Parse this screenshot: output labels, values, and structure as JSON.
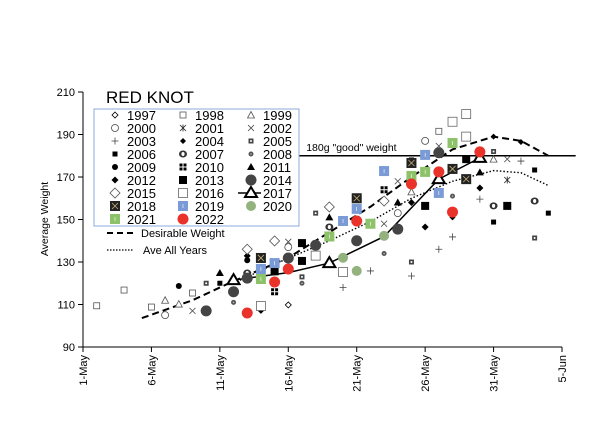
{
  "chart_data": {
    "type": "scatter",
    "title": "RED KNOT",
    "xlabel": "",
    "ylabel": "Average Weight",
    "x_units": "days after 1-May",
    "xlim": [
      0,
      35
    ],
    "ylim": [
      90,
      210
    ],
    "yticks": [
      90,
      110,
      130,
      150,
      170,
      190,
      210
    ],
    "xticks": [
      {
        "value": 0,
        "label": "1-May"
      },
      {
        "value": 5,
        "label": "6-May"
      },
      {
        "value": 10,
        "label": "11-May"
      },
      {
        "value": 15,
        "label": "16-May"
      },
      {
        "value": 20,
        "label": "21-May"
      },
      {
        "value": 25,
        "label": "26-May"
      },
      {
        "value": 30,
        "label": "31-May"
      },
      {
        "value": 35,
        "label": "5-Jun"
      }
    ],
    "grid": false,
    "legend_position": "top-left",
    "reference_line": {
      "value": 180,
      "label": "180g \"good\" weight",
      "x_start": 15.8,
      "x_end": 36
    },
    "series": [
      {
        "name": "1997",
        "marker": "diamond-open-small",
        "color": "#000000",
        "points": [
          [
            15,
            109.8
          ]
        ]
      },
      {
        "name": "1998",
        "marker": "square-open-small",
        "color": "#000000",
        "points": [
          [
            1,
            109.4
          ],
          [
            3,
            116.8
          ],
          [
            5,
            108.8
          ],
          [
            8,
            115.4
          ],
          [
            26,
            191.5
          ]
        ]
      },
      {
        "name": "1999",
        "marker": "triangle-open",
        "color": "#000000",
        "points": [
          [
            6,
            112
          ],
          [
            7,
            110.2
          ],
          [
            30,
            178.4
          ],
          [
            24,
            163
          ]
        ]
      },
      {
        "name": "2000",
        "marker": "circle-open",
        "color": "#000000",
        "points": [
          [
            6,
            105
          ],
          [
            15,
            137
          ],
          [
            25,
            187
          ],
          [
            23,
            153
          ]
        ]
      },
      {
        "name": "2001",
        "marker": "asterisk",
        "color": "#000000",
        "points": [
          [
            31,
            168.6
          ]
        ]
      },
      {
        "name": "2002",
        "marker": "x",
        "color": "#000000",
        "points": [
          [
            8,
            107
          ],
          [
            15,
            139.5
          ],
          [
            26,
            184.6
          ],
          [
            31,
            178.4
          ],
          [
            22,
            148
          ],
          [
            23,
            168
          ]
        ]
      },
      {
        "name": "2003",
        "marker": "plus",
        "color": "#000000",
        "points": [
          [
            19,
            118
          ],
          [
            21,
            125.8
          ],
          [
            32,
            177.5
          ],
          [
            29,
            159.6
          ],
          [
            27,
            141.8
          ],
          [
            26,
            136
          ],
          [
            24,
            123.4
          ]
        ]
      },
      {
        "name": "2004",
        "marker": "diamond-filled-small",
        "color": "#000000",
        "points": [
          [
            13,
            107
          ],
          [
            30,
            189
          ],
          [
            32,
            186.5
          ],
          [
            27,
            151
          ]
        ]
      },
      {
        "name": "2005",
        "marker": "square-dot",
        "color": "#444444",
        "points": [
          [
            9,
            120
          ],
          [
            16,
            123
          ],
          [
            17,
            153
          ],
          [
            30,
            182
          ],
          [
            33,
            141.3
          ],
          [
            24,
            130
          ]
        ]
      },
      {
        "name": "2006",
        "marker": "square-filled-small",
        "color": "#000000",
        "points": [
          [
            10,
            120
          ],
          [
            24,
            178
          ],
          [
            33,
            173.3
          ],
          [
            34,
            153
          ],
          [
            30,
            148.8
          ]
        ]
      },
      {
        "name": "2007",
        "marker": "circle-ring",
        "color": "#333333",
        "points": [
          [
            12,
            124.8
          ],
          [
            18,
            146.5
          ],
          [
            30,
            156.4
          ],
          [
            33,
            158.7
          ]
        ]
      },
      {
        "name": "2008",
        "marker": "circle-gray-small",
        "color": "#555555",
        "points": [
          [
            11,
            111
          ],
          [
            27,
            161
          ],
          [
            22,
            134
          ],
          [
            16,
            120
          ]
        ]
      },
      {
        "name": "2009",
        "marker": "circle-filled",
        "color": "#000000",
        "points": [
          [
            7,
            118.7
          ],
          [
            12,
            130.8
          ]
        ]
      },
      {
        "name": "2010",
        "marker": "square-grid",
        "color": "#000000",
        "points": [
          [
            14,
            116
          ],
          [
            22,
            164
          ]
        ]
      },
      {
        "name": "2011",
        "marker": "triangle-filled",
        "color": "#000000",
        "points": [
          [
            10,
            124.8
          ],
          [
            18,
            151
          ],
          [
            29,
            172.2
          ],
          [
            23,
            158
          ]
        ]
      },
      {
        "name": "2012",
        "marker": "diamond-filled",
        "color": "#000000",
        "points": [
          [
            12,
            132.9
          ],
          [
            25,
            146.5
          ],
          [
            29,
            164.8
          ],
          [
            24,
            158
          ]
        ]
      },
      {
        "name": "2013",
        "marker": "square-filled",
        "color": "#000000",
        "points": [
          [
            14,
            125.6
          ],
          [
            16,
            138.9
          ],
          [
            16,
            130.5
          ],
          [
            28,
            178.4
          ],
          [
            25,
            156.4
          ],
          [
            31,
            156.4
          ]
        ]
      },
      {
        "name": "2014",
        "marker": "circle-dark-large",
        "color": "#444444",
        "points": [
          [
            9,
            107
          ],
          [
            11,
            116
          ],
          [
            12,
            122.4
          ],
          [
            15,
            131.9
          ],
          [
            17,
            137.9
          ],
          [
            20,
            140
          ],
          [
            26,
            181.4
          ],
          [
            23,
            145.5
          ]
        ]
      },
      {
        "name": "2015",
        "marker": "diamond-open-large",
        "color": "#000000",
        "points": [
          [
            12,
            136
          ],
          [
            14,
            139.9
          ],
          [
            18,
            155.9
          ],
          [
            22,
            158.7
          ]
        ]
      },
      {
        "name": "2016",
        "marker": "square-open-large",
        "color": "#000000",
        "points": [
          [
            13,
            109.3
          ],
          [
            17,
            133
          ],
          [
            19,
            125.3
          ],
          [
            28,
            199.6
          ],
          [
            27,
            196
          ],
          [
            28,
            189
          ]
        ]
      },
      {
        "name": "2017",
        "marker": "triangle-open-large",
        "color": "#000000",
        "points": [
          [
            11,
            121.5
          ],
          [
            18,
            129.5
          ],
          [
            26,
            169
          ],
          [
            29,
            179
          ]
        ],
        "line": [
          [
            11,
            121.5
          ],
          [
            15,
            125
          ],
          [
            18,
            129.5
          ],
          [
            22,
            142
          ],
          [
            26,
            169
          ],
          [
            29,
            179
          ]
        ]
      },
      {
        "name": "2018",
        "marker": "square-x",
        "color": "#222222",
        "points": [
          [
            13,
            131.9
          ],
          [
            20,
            160
          ],
          [
            24,
            176.6
          ],
          [
            27,
            173.8
          ],
          [
            28,
            169
          ]
        ]
      },
      {
        "name": "2019",
        "marker": "square-colored",
        "color": "#7b9bd6",
        "points": [
          [
            13,
            126.7
          ],
          [
            14,
            129.5
          ],
          [
            19,
            149.3
          ],
          [
            20,
            155
          ],
          [
            25,
            180.4
          ],
          [
            26,
            162.5
          ],
          [
            22,
            172.8
          ]
        ]
      },
      {
        "name": "2020",
        "marker": "circle-colored",
        "color": "#93b27e",
        "points": [
          [
            19,
            132
          ],
          [
            20,
            125.8
          ],
          [
            22,
            142.3
          ]
        ]
      },
      {
        "name": "2021",
        "marker": "square-colored",
        "color": "#8dc26a",
        "points": [
          [
            13,
            122
          ],
          [
            18,
            142
          ],
          [
            21,
            148
          ],
          [
            27,
            186
          ],
          [
            25,
            172.4
          ],
          [
            24,
            170.5
          ]
        ]
      },
      {
        "name": "2022",
        "marker": "circle-colored-large",
        "color": "#e8322a",
        "points": [
          [
            12,
            106
          ],
          [
            14,
            120.6
          ],
          [
            15,
            126.7
          ],
          [
            20,
            149.3
          ],
          [
            24,
            166.7
          ],
          [
            26,
            172.4
          ],
          [
            27,
            153.5
          ],
          [
            29,
            181.8
          ]
        ]
      }
    ],
    "curves": [
      {
        "name": "Desirable Weight",
        "style": "dashed",
        "points": [
          [
            4.3,
            103.6
          ],
          [
            8,
            112
          ],
          [
            11,
            121
          ],
          [
            15,
            132
          ],
          [
            18,
            144
          ],
          [
            21,
            156
          ],
          [
            24,
            170
          ],
          [
            27,
            183
          ],
          [
            30,
            189
          ],
          [
            32,
            187
          ],
          [
            34,
            180
          ]
        ]
      },
      {
        "name": "Ave All Years",
        "style": "dotted",
        "points": [
          [
            11,
            120
          ],
          [
            14,
            129
          ],
          [
            18,
            140
          ],
          [
            21,
            149
          ],
          [
            24,
            160
          ],
          [
            27,
            168
          ],
          [
            30,
            173
          ],
          [
            32,
            172
          ],
          [
            34,
            166
          ]
        ]
      }
    ],
    "legend_border_color": "#8eaadb"
  }
}
